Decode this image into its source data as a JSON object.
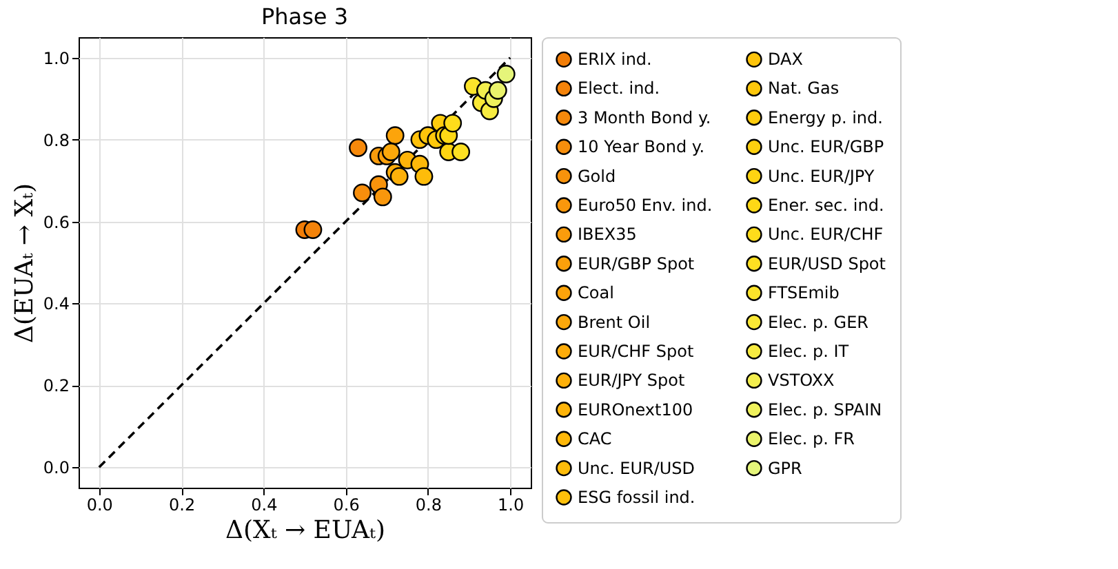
{
  "chart_data": {
    "type": "scatter",
    "title": "Phase 3",
    "xlabel": "Δ(Xₜ → EUAₜ)",
    "ylabel": "Δ(EUAₜ → Xₜ)",
    "xlim": [
      -0.05,
      1.05
    ],
    "ylim": [
      -0.05,
      1.05
    ],
    "xticks": [
      {
        "value": 0,
        "label": "0.0"
      },
      0.2,
      0.4,
      0.6,
      0.8,
      {
        "value": 1,
        "label": "1.0"
      }
    ],
    "yticks": [
      {
        "value": 0,
        "label": "0.0"
      },
      0.2,
      0.4,
      0.6,
      0.8,
      {
        "value": 1,
        "label": "1.0"
      }
    ],
    "grid": true,
    "legend": "right",
    "marker": "circle",
    "series": [
      {
        "type": "line",
        "color": "#000000",
        "line_style": "dashed",
        "marker": "none",
        "x": [
          0,
          1
        ],
        "values": [
          0,
          1
        ]
      },
      {
        "name": "ERIX ind.",
        "color": "#f27d07",
        "x": [
          0.5
        ],
        "values": [
          0.58
        ]
      },
      {
        "name": "Elect. ind.",
        "color": "#f4830a",
        "x": [
          0.52
        ],
        "values": [
          0.58
        ]
      },
      {
        "name": "3 Month Bond y.",
        "color": "#f6890b",
        "x": [
          0.63
        ],
        "values": [
          0.78
        ]
      },
      {
        "name": "10 Year Bond y.",
        "color": "#f78e0c",
        "x": [
          0.64
        ],
        "values": [
          0.67
        ]
      },
      {
        "name": "Gold",
        "color": "#f8930c",
        "x": [
          0.68
        ],
        "values": [
          0.69
        ]
      },
      {
        "name": "Euro50 Env. ind.",
        "color": "#f9970c",
        "x": [
          0.69
        ],
        "values": [
          0.66
        ]
      },
      {
        "name": "IBEX35",
        "color": "#fa9c0c",
        "x": [
          0.68
        ],
        "values": [
          0.76
        ]
      },
      {
        "name": "EUR/GBP Spot",
        "color": "#fba00b",
        "x": [
          0.7
        ],
        "values": [
          0.76
        ]
      },
      {
        "name": "Coal",
        "color": "#fca40b",
        "x": [
          0.72
        ],
        "values": [
          0.81
        ]
      },
      {
        "name": "Brent Oil",
        "color": "#fca80b",
        "x": [
          0.71
        ],
        "values": [
          0.77
        ]
      },
      {
        "name": "EUR/CHF Spot",
        "color": "#fdac0a",
        "x": [
          0.72
        ],
        "values": [
          0.72
        ]
      },
      {
        "name": "EUR/JPY Spot",
        "color": "#fdb00a",
        "x": [
          0.73
        ],
        "values": [
          0.71
        ]
      },
      {
        "name": "EUROnext100",
        "color": "#feb40a",
        "x": [
          0.75
        ],
        "values": [
          0.75
        ]
      },
      {
        "name": "CAC",
        "color": "#feb80a",
        "x": [
          0.78
        ],
        "values": [
          0.74
        ]
      },
      {
        "name": "Unc. EUR/USD",
        "color": "#febc0a",
        "x": [
          0.79
        ],
        "values": [
          0.71
        ]
      },
      {
        "name": "ESG fossil ind.",
        "color": "#fec00b",
        "x": [
          0.78
        ],
        "values": [
          0.8
        ]
      },
      {
        "name": "DAX",
        "color": "#fec40b",
        "x": [
          0.8
        ],
        "values": [
          0.81
        ]
      },
      {
        "name": "Nat. Gas",
        "color": "#fec80c",
        "x": [
          0.82
        ],
        "values": [
          0.8
        ]
      },
      {
        "name": "Energy p. ind.",
        "color": "#fecc0d",
        "x": [
          0.83
        ],
        "values": [
          0.84
        ]
      },
      {
        "name": "Unc. EUR/GBP",
        "color": "#fed00f",
        "x": [
          0.84
        ],
        "values": [
          0.81
        ]
      },
      {
        "name": "Unc. EUR/JPY",
        "color": "#fed412",
        "x": [
          0.85
        ],
        "values": [
          0.77
        ]
      },
      {
        "name": "Ener. sec. ind.",
        "color": "#fed816",
        "x": [
          0.85
        ],
        "values": [
          0.81
        ]
      },
      {
        "name": "Unc. EUR/CHF",
        "color": "#fedc1b",
        "x": [
          0.86
        ],
        "values": [
          0.84
        ]
      },
      {
        "name": "EUR/USD Spot",
        "color": "#fde022",
        "x": [
          0.88
        ],
        "values": [
          0.77
        ]
      },
      {
        "name": "FTSEmib",
        "color": "#fce42b",
        "x": [
          0.91
        ],
        "values": [
          0.93
        ]
      },
      {
        "name": "Elec. p. GER",
        "color": "#fae835",
        "x": [
          0.93
        ],
        "values": [
          0.89
        ]
      },
      {
        "name": "Elec. p. IT",
        "color": "#f7eb41",
        "x": [
          0.95
        ],
        "values": [
          0.87
        ]
      },
      {
        "name": "VSTOXX",
        "color": "#f3ee4e",
        "x": [
          0.94
        ],
        "values": [
          0.92
        ]
      },
      {
        "name": "Elec. p. SPAIN",
        "color": "#eff15c",
        "x": [
          0.96
        ],
        "values": [
          0.9
        ]
      },
      {
        "name": "Elec. p. FR",
        "color": "#eaf36b",
        "x": [
          0.97
        ],
        "values": [
          0.92
        ]
      },
      {
        "name": "GPR",
        "color": "#e5f57a",
        "x": [
          0.99
        ],
        "values": [
          0.96
        ]
      }
    ]
  }
}
